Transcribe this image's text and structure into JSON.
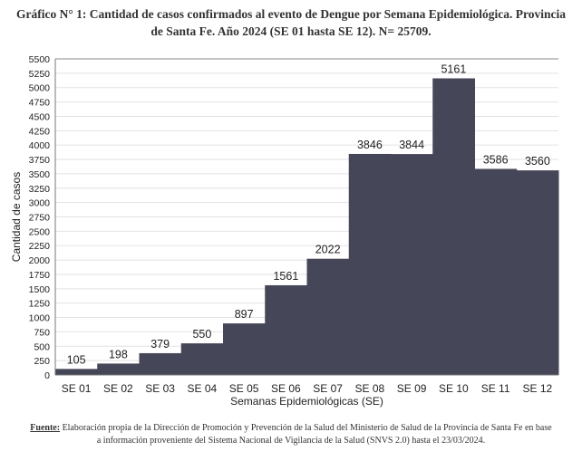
{
  "title_line1": "Gráfico N° 1: Cantidad de casos confirmados al evento de Dengue por Semana Epidemiológica. Provincia",
  "title_line2": "de Santa Fe. Año 2024 (SE 01 hasta SE 12). N= 25709.",
  "footer": {
    "source_label": "Fuente:",
    "line1": " Elaboración propia de la Dirección de Promoción y Prevención de la Salud del Ministerio de Salud de la Provincia de Santa Fe en base",
    "line2": "a información proveniente del Sistema Nacional de Vigilancia de la Salud (SNVS 2.0) hasta el 23/03/2024."
  },
  "chart_data": {
    "type": "bar",
    "title": "Gráfico N° 1: Cantidad de casos confirmados al evento de Dengue por Semana Epidemiológica. Provincia de Santa Fe. Año 2024 (SE 01 hasta SE 12). N= 25709.",
    "xlabel": "Semanas Epidemiológicas (SE)",
    "ylabel": "Cantidad de casos",
    "categories": [
      "SE 01",
      "SE 02",
      "SE 03",
      "SE 04",
      "SE 05",
      "SE 06",
      "SE 07",
      "SE 08",
      "SE 09",
      "SE 10",
      "SE 11",
      "SE 12"
    ],
    "values": [
      105,
      198,
      379,
      550,
      897,
      1561,
      2022,
      3846,
      3844,
      5161,
      3586,
      3560
    ],
    "ylim": [
      0,
      5500
    ],
    "ytick_step": 250,
    "grid": true,
    "legend": "none",
    "bar_color": "#464659",
    "grid_color": "#e2e2e2"
  }
}
